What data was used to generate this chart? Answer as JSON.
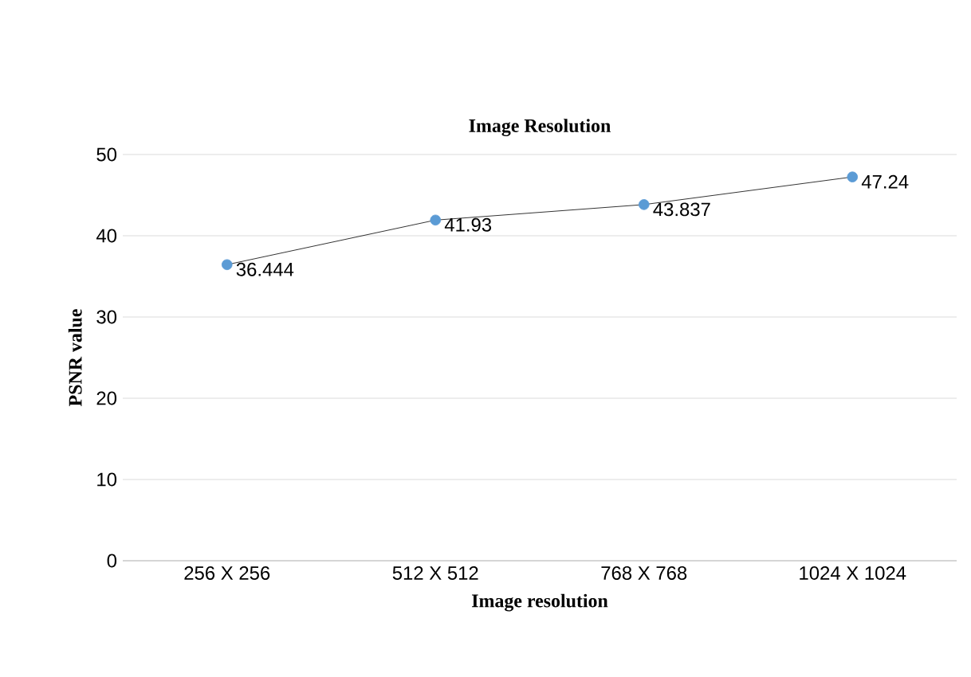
{
  "chart_data": {
    "type": "line",
    "title": "Image Resolution",
    "xlabel": "Image resolution",
    "ylabel": "PSNR value",
    "categories": [
      "256 X 256",
      "512 X 512",
      "768 X 768",
      "1024 X 1024"
    ],
    "values": [
      36.444,
      41.93,
      43.837,
      47.24
    ],
    "color": "#5b9bd5",
    "ylim": [
      0,
      50
    ],
    "yticks": [
      0,
      10,
      20,
      30,
      40,
      50
    ],
    "grid": "y",
    "marker": "circle",
    "line_style": "solid",
    "data_labels": true
  }
}
